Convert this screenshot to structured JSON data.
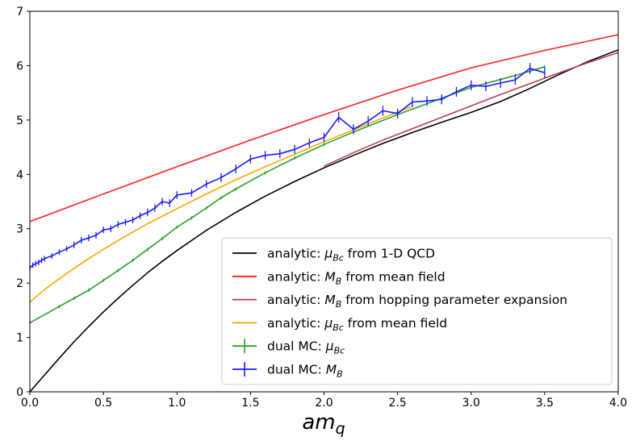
{
  "chart_data": {
    "type": "line",
    "title": "",
    "xlabel_base": "am",
    "xlabel_sub": "q",
    "ylabel": "",
    "xlim": [
      0.0,
      4.0
    ],
    "ylim": [
      0,
      7
    ],
    "xticks": [
      0.0,
      0.5,
      1.0,
      1.5,
      2.0,
      2.5,
      3.0,
      3.5,
      4.0
    ],
    "xtick_labels": [
      "0.0",
      "0.5",
      "1.0",
      "1.5",
      "2.0",
      "2.5",
      "3.0",
      "3.5",
      "4.0"
    ],
    "yticks": [
      0,
      1,
      2,
      3,
      4,
      5,
      6,
      7
    ],
    "ytick_labels": [
      "0",
      "1",
      "2",
      "3",
      "4",
      "5",
      "6",
      "7"
    ],
    "grid": false,
    "legend_position": "bottom-right",
    "series": [
      {
        "name": "analytic: μ_Bc from 1-D QCD",
        "legend_parts": [
          "analytic: ",
          "μ",
          "Bc",
          " from 1-D QCD"
        ],
        "color": "#000000",
        "style": "line",
        "x": [
          0.0,
          0.1,
          0.2,
          0.3,
          0.4,
          0.5,
          0.6,
          0.7,
          0.8,
          0.9,
          1.0,
          1.2,
          1.4,
          1.6,
          1.8,
          2.0,
          2.2,
          2.4,
          2.6,
          2.8,
          3.0,
          3.2,
          3.4,
          3.6,
          3.8,
          4.0
        ],
        "y": [
          0.0,
          0.31,
          0.62,
          0.92,
          1.2,
          1.47,
          1.72,
          1.96,
          2.19,
          2.4,
          2.6,
          2.97,
          3.3,
          3.6,
          3.87,
          4.12,
          4.35,
          4.57,
          4.77,
          4.96,
          5.14,
          5.34,
          5.58,
          5.84,
          6.08,
          6.29
        ]
      },
      {
        "name": "analytic: M_B from mean field",
        "legend_parts": [
          "analytic: ",
          "M",
          "B",
          " from mean field"
        ],
        "color": "#ff2020",
        "style": "line",
        "x": [
          0.0,
          0.5,
          1.0,
          1.5,
          2.0,
          2.5,
          3.0,
          3.5,
          4.0
        ],
        "y": [
          3.13,
          3.64,
          4.14,
          4.63,
          5.1,
          5.55,
          5.96,
          6.28,
          6.57
        ]
      },
      {
        "name": "analytic: M_B from hopping parameter expansion",
        "legend_parts": [
          "analytic: ",
          "M",
          "B",
          " from hopping parameter expansion"
        ],
        "color": "#b34545",
        "style": "line",
        "x": [
          2.0,
          2.2,
          2.4,
          2.6,
          2.8,
          3.0,
          3.2,
          3.4,
          3.6,
          3.8,
          4.0
        ],
        "y": [
          4.15,
          4.4,
          4.63,
          4.84,
          5.05,
          5.26,
          5.47,
          5.67,
          5.87,
          6.06,
          6.24
        ]
      },
      {
        "name": "analytic: μ_Bc from mean field",
        "legend_parts": [
          "analytic: ",
          "μ",
          "Bc",
          " from mean field"
        ],
        "color": "#ffa500",
        "style": "line",
        "x": [
          0.0,
          0.1,
          0.2,
          0.3,
          0.4,
          0.5,
          0.6,
          0.7,
          0.8,
          0.9,
          1.0,
          1.2,
          1.4,
          1.6,
          1.8,
          2.0,
          2.2,
          2.4,
          2.6
        ],
        "y": [
          1.65,
          1.88,
          2.08,
          2.27,
          2.45,
          2.62,
          2.78,
          2.94,
          3.09,
          3.23,
          3.37,
          3.64,
          3.9,
          4.14,
          4.37,
          4.6,
          4.82,
          5.04,
          5.25
        ]
      },
      {
        "name": "dual MC: μ_Bc",
        "legend_parts": [
          "dual MC: ",
          "μ",
          "Bc",
          ""
        ],
        "color": "#2ca02c",
        "style": "errorbar",
        "x": [
          0.0,
          0.2,
          0.3,
          0.4,
          0.5,
          0.6,
          0.7,
          0.8,
          0.9,
          1.0,
          1.1,
          1.2,
          1.3,
          1.4,
          1.6,
          1.8,
          2.0,
          2.2,
          2.5,
          2.8,
          3.0,
          3.3,
          3.5
        ],
        "y": [
          1.27,
          1.57,
          1.72,
          1.87,
          2.05,
          2.23,
          2.42,
          2.62,
          2.82,
          3.03,
          3.2,
          3.38,
          3.57,
          3.73,
          4.03,
          4.3,
          4.55,
          4.78,
          5.1,
          5.4,
          5.6,
          5.82,
          5.98
        ],
        "yerr": [
          0.02,
          0.03,
          0.03,
          0.03,
          0.03,
          0.03,
          0.03,
          0.03,
          0.03,
          0.03,
          0.03,
          0.03,
          0.03,
          0.03,
          0.03,
          0.03,
          0.03,
          0.03,
          0.03,
          0.03,
          0.03,
          0.03,
          0.03
        ]
      },
      {
        "name": "dual MC: M_B",
        "legend_parts": [
          "dual MC: ",
          "M",
          "B",
          ""
        ],
        "color": "#1a1aff",
        "style": "errorbar",
        "x": [
          0.0,
          0.02,
          0.04,
          0.06,
          0.08,
          0.1,
          0.15,
          0.2,
          0.25,
          0.3,
          0.35,
          0.4,
          0.45,
          0.5,
          0.55,
          0.6,
          0.65,
          0.7,
          0.75,
          0.8,
          0.85,
          0.9,
          0.95,
          1.0,
          1.1,
          1.2,
          1.3,
          1.4,
          1.5,
          1.6,
          1.7,
          1.8,
          1.9,
          2.0,
          2.1,
          2.2,
          2.3,
          2.4,
          2.5,
          2.6,
          2.7,
          2.8,
          2.9,
          3.0,
          3.1,
          3.2,
          3.3,
          3.4,
          3.5
        ],
        "y": [
          2.28,
          2.33,
          2.36,
          2.38,
          2.42,
          2.45,
          2.5,
          2.57,
          2.63,
          2.7,
          2.79,
          2.83,
          2.88,
          2.98,
          3.0,
          3.08,
          3.12,
          3.16,
          3.24,
          3.3,
          3.38,
          3.5,
          3.47,
          3.62,
          3.66,
          3.82,
          3.94,
          4.1,
          4.28,
          4.35,
          4.38,
          4.46,
          4.58,
          4.68,
          5.05,
          4.83,
          4.98,
          5.17,
          5.12,
          5.33,
          5.35,
          5.38,
          5.52,
          5.64,
          5.62,
          5.68,
          5.74,
          5.95,
          5.87
        ],
        "yerr": [
          0.05,
          0.05,
          0.05,
          0.05,
          0.05,
          0.05,
          0.05,
          0.05,
          0.05,
          0.06,
          0.06,
          0.06,
          0.06,
          0.06,
          0.06,
          0.06,
          0.06,
          0.06,
          0.06,
          0.07,
          0.07,
          0.07,
          0.07,
          0.07,
          0.07,
          0.07,
          0.08,
          0.08,
          0.08,
          0.08,
          0.08,
          0.08,
          0.08,
          0.09,
          0.1,
          0.09,
          0.09,
          0.09,
          0.09,
          0.09,
          0.09,
          0.09,
          0.09,
          0.09,
          0.09,
          0.09,
          0.09,
          0.1,
          0.1
        ]
      }
    ]
  }
}
